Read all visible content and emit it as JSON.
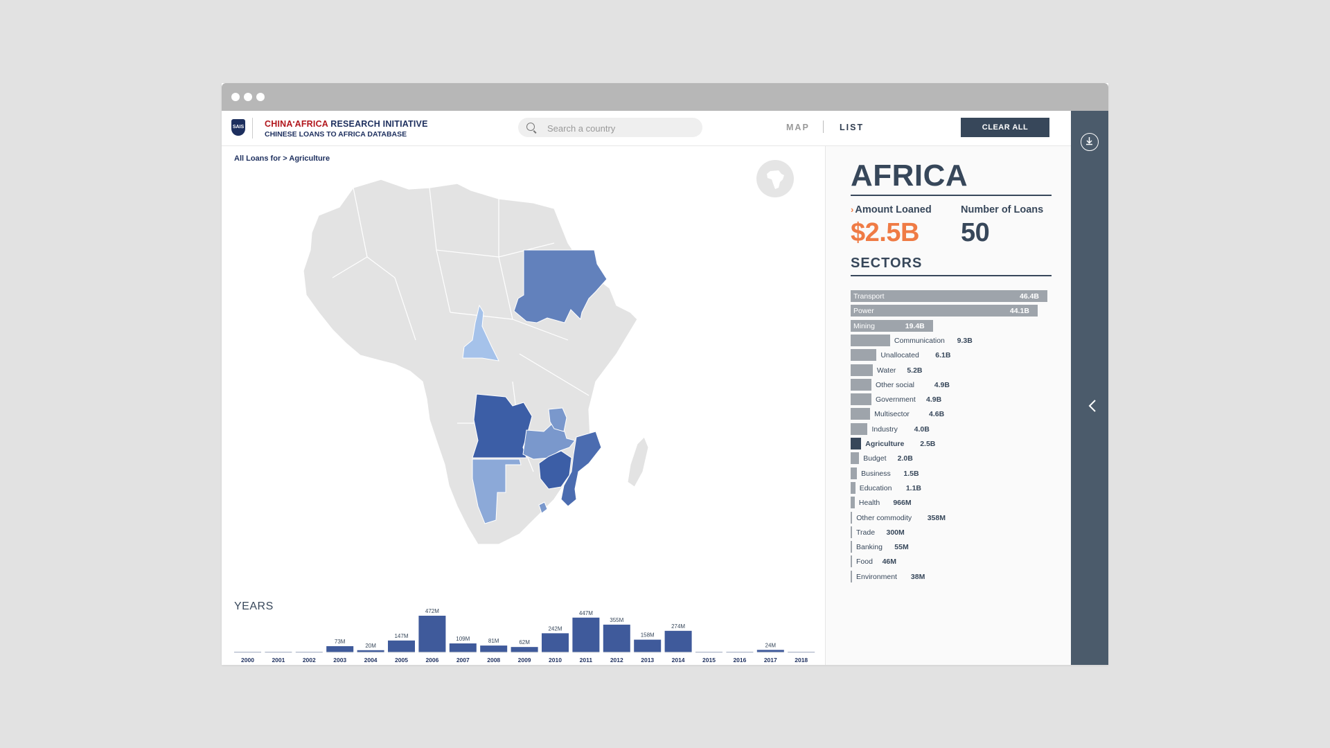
{
  "header": {
    "logo_mark": "SAIS",
    "brand_red": "CHINA",
    "brand_sup": "•",
    "brand_red2": "AFRICA",
    "brand_rest": " RESEARCH INITIATIVE",
    "subtitle": "CHINESE LOANS TO AFRICA DATABASE",
    "search_placeholder": "Search a country",
    "nav_map": "MAP",
    "nav_list": "LIST",
    "clear_all": "CLEAR ALL"
  },
  "breadcrumb": {
    "prefix": "All Loans for",
    "separator": ">",
    "current": "Agriculture"
  },
  "panel": {
    "region": "AFRICA",
    "amount_label": "Amount Loaned",
    "amount_value": "$2.5B",
    "count_label": "Number of Loans",
    "count_value": "50",
    "sectors_title": "SECTORS"
  },
  "colors": {
    "accent_orange": "#ef7b45",
    "navy": "#37475a",
    "bar_blue": "#3f5a9b",
    "sector_grey": "#9ea4ab",
    "sector_selected": "#37475a"
  },
  "chart_data": [
    {
      "type": "bar",
      "title": "YEARS",
      "categories": [
        "2000",
        "2001",
        "2002",
        "2003",
        "2004",
        "2005",
        "2006",
        "2007",
        "2008",
        "2009",
        "2010",
        "2011",
        "2012",
        "2013",
        "2014",
        "2015",
        "2016",
        "2017",
        "2018"
      ],
      "values": [
        0,
        0,
        0,
        73,
        20,
        147,
        472,
        109,
        81,
        62,
        242,
        447,
        355,
        158,
        274,
        0,
        0,
        24,
        0
      ],
      "labels": [
        "",
        "",
        "",
        "73M",
        "20M",
        "147M",
        "472M",
        "109M",
        "81M",
        "62M",
        "242M",
        "447M",
        "355M",
        "158M",
        "274M",
        "",
        "",
        "24M",
        ""
      ],
      "unit": "M"
    },
    {
      "type": "bar",
      "title": "SECTORS",
      "orientation": "horizontal",
      "categories": [
        "Transport",
        "Power",
        "Mining",
        "Communication",
        "Unallocated",
        "Water",
        "Other social",
        "Government",
        "Multisector",
        "Industry",
        "Agriculture",
        "Budget",
        "Business",
        "Education",
        "Health",
        "Other commodity",
        "Trade",
        "Banking",
        "Food",
        "Environment"
      ],
      "values": [
        46.4,
        44.1,
        19.4,
        9.3,
        6.1,
        5.2,
        4.9,
        4.9,
        4.6,
        4.0,
        2.5,
        2.0,
        1.5,
        1.1,
        0.966,
        0.358,
        0.3,
        0.055,
        0.046,
        0.038
      ],
      "labels": [
        "46.4B",
        "44.1B",
        "19.4B",
        "9.3B",
        "6.1B",
        "5.2B",
        "4.9B",
        "4.9B",
        "4.6B",
        "4.0B",
        "2.5B",
        "2.0B",
        "1.5B",
        "1.1B",
        "966M",
        "358M",
        "300M",
        "55M",
        "46M",
        "38M"
      ],
      "unit": "B",
      "selected": "Agriculture"
    }
  ]
}
